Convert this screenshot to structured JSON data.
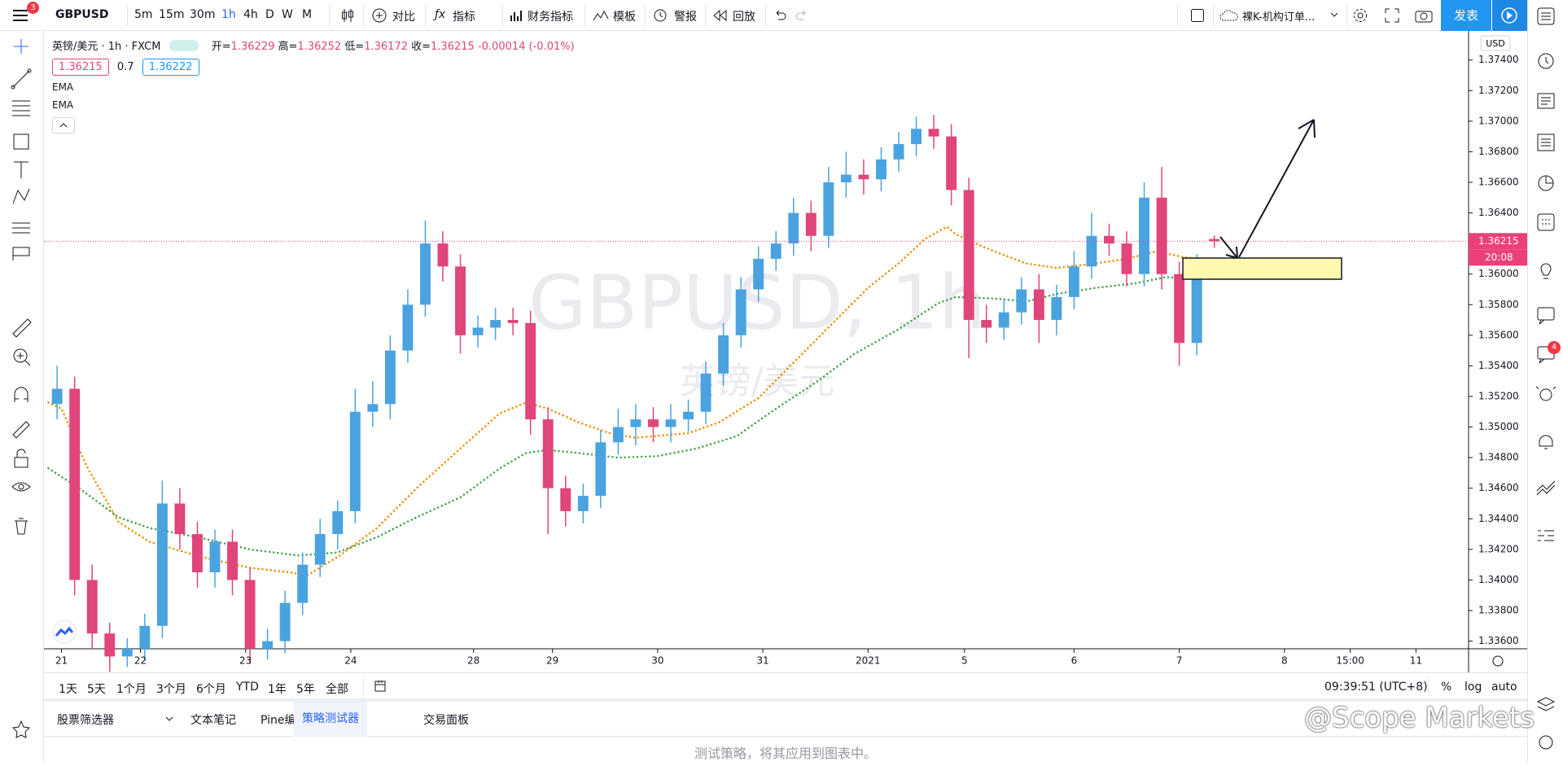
{
  "toolbar": {
    "badge": "3",
    "symbol": "GBPUSD",
    "intervals": [
      "5m",
      "15m",
      "30m",
      "1h",
      "4h",
      "D",
      "W",
      "M"
    ],
    "compare": "对比",
    "indicators": "指标",
    "financials": "财务指标",
    "templates": "模板",
    "alert": "警报",
    "replay": "回放",
    "layout_name": "裸K-机构订单...",
    "publish": "发表"
  },
  "legend": {
    "title": "英镑/美元 · 1h · FXCM",
    "ohlc": [
      {
        "label": "开=",
        "value": "1.36229"
      },
      {
        "label": "高=",
        "value": "1.36252"
      },
      {
        "label": "低=",
        "value": "1.36172"
      },
      {
        "label": "收=",
        "value": "1.36215"
      }
    ],
    "change": "-0.00014 (-0.01%)",
    "bid": "1.36215",
    "spread": "0.7",
    "ask": "1.36222"
  },
  "chart_data": {
    "type": "candlestick",
    "watermark": "GBPUSD, 1h",
    "watermark_sub": "英镑/美元",
    "currency": "USD",
    "price_tag": "1.36215",
    "countdown": "20:08",
    "up_color": "#4aa3df",
    "down_color": "#e0457b",
    "x": [
      3,
      7,
      11,
      15,
      19,
      23,
      27,
      31,
      35,
      39,
      43,
      47,
      51,
      55,
      59,
      63,
      67,
      71,
      75,
      79,
      83,
      87,
      91,
      95,
      99,
      103,
      107,
      111,
      115,
      119,
      123,
      127,
      131,
      135,
      139,
      143,
      147,
      151,
      155,
      159,
      163,
      167,
      171,
      175,
      179,
      183,
      187,
      191,
      195,
      199,
      203,
      207,
      211,
      215,
      219,
      223,
      227,
      231,
      235,
      239,
      243,
      247,
      251,
      255,
      259,
      263,
      267
    ],
    "open": [
      1.3515,
      1.3525,
      1.34,
      1.3365,
      1.335,
      1.3355,
      1.337,
      1.345,
      1.343,
      1.3405,
      1.3425,
      1.34,
      1.3355,
      1.336,
      1.3385,
      1.341,
      1.343,
      1.3445,
      1.351,
      1.3515,
      1.355,
      1.358,
      1.362,
      1.3605,
      1.356,
      1.3565,
      1.357,
      1.3568,
      1.3505,
      1.346,
      1.3445,
      1.3455,
      1.349,
      1.35,
      1.3505,
      1.35,
      1.3505,
      1.351,
      1.3535,
      1.356,
      1.359,
      1.361,
      1.362,
      1.364,
      1.3625,
      1.366,
      1.3665,
      1.3662,
      1.3675,
      1.3685,
      1.3695,
      1.369,
      1.3655,
      1.357,
      1.3565,
      1.3575,
      1.359,
      1.357,
      1.3585,
      1.3605,
      1.3625,
      1.362,
      1.36,
      1.365,
      1.36,
      1.3555,
      1.36229
    ],
    "high": [
      1.354,
      1.3533,
      1.341,
      1.3372,
      1.3362,
      1.3378,
      1.3465,
      1.346,
      1.3438,
      1.3433,
      1.3433,
      1.3408,
      1.3368,
      1.3393,
      1.3418,
      1.344,
      1.3452,
      1.3525,
      1.353,
      1.356,
      1.359,
      1.3635,
      1.3628,
      1.3613,
      1.3573,
      1.3578,
      1.3578,
      1.3576,
      1.3513,
      1.3468,
      1.3463,
      1.3498,
      1.3512,
      1.3515,
      1.3513,
      1.3515,
      1.3518,
      1.3543,
      1.3568,
      1.3598,
      1.3618,
      1.3628,
      1.365,
      1.3648,
      1.367,
      1.368,
      1.3675,
      1.3683,
      1.3693,
      1.3703,
      1.3704,
      1.3698,
      1.3663,
      1.358,
      1.3583,
      1.3598,
      1.36,
      1.3593,
      1.3615,
      1.364,
      1.3633,
      1.3628,
      1.366,
      1.367,
      1.3608,
      1.3613,
      1.36252
    ],
    "low": [
      1.3505,
      1.339,
      1.3355,
      1.334,
      1.3343,
      1.3347,
      1.3362,
      1.342,
      1.3395,
      1.3395,
      1.339,
      1.3345,
      1.3348,
      1.3352,
      1.3377,
      1.3402,
      1.342,
      1.3437,
      1.35,
      1.3505,
      1.3542,
      1.3572,
      1.3595,
      1.3548,
      1.3552,
      1.3557,
      1.356,
      1.3495,
      1.343,
      1.3435,
      1.3437,
      1.3447,
      1.3482,
      1.3488,
      1.349,
      1.349,
      1.3497,
      1.3502,
      1.3527,
      1.3552,
      1.3582,
      1.3602,
      1.3612,
      1.3615,
      1.3617,
      1.365,
      1.3652,
      1.3654,
      1.3667,
      1.3677,
      1.3682,
      1.3645,
      1.3545,
      1.3555,
      1.3557,
      1.3567,
      1.3555,
      1.356,
      1.3577,
      1.3597,
      1.3612,
      1.3592,
      1.3592,
      1.359,
      1.354,
      1.3547,
      1.36172
    ],
    "close": [
      1.3525,
      1.34,
      1.3365,
      1.335,
      1.3355,
      1.337,
      1.345,
      1.343,
      1.3405,
      1.3425,
      1.34,
      1.3355,
      1.336,
      1.3385,
      1.341,
      1.343,
      1.3445,
      1.351,
      1.3515,
      1.355,
      1.358,
      1.362,
      1.3605,
      1.356,
      1.3565,
      1.357,
      1.3568,
      1.3505,
      1.346,
      1.3445,
      1.3455,
      1.349,
      1.35,
      1.3505,
      1.35,
      1.3505,
      1.351,
      1.3535,
      1.356,
      1.359,
      1.361,
      1.362,
      1.364,
      1.3625,
      1.366,
      1.3665,
      1.3662,
      1.3675,
      1.3685,
      1.3695,
      1.369,
      1.3655,
      1.357,
      1.3565,
      1.3575,
      1.359,
      1.357,
      1.3585,
      1.3605,
      1.3625,
      1.362,
      1.36,
      1.365,
      1.36,
      1.3555,
      1.3605,
      1.36215
    ],
    "series": [
      {
        "name": "EMA",
        "color": "#f08c00",
        "x": [
          1,
          4,
          10,
          17,
          24,
          36,
          47,
          56,
          60,
          67,
          76,
          85,
          95,
          104,
          110,
          115,
          122,
          129,
          135,
          147,
          154,
          163,
          172,
          181,
          188,
          195,
          201,
          206,
          208,
          215,
          224,
          231,
          240,
          247,
          254,
          260,
          268
        ],
        "values": [
          1.3516,
          1.3512,
          1.3473,
          1.3438,
          1.3425,
          1.3415,
          1.3408,
          1.3405,
          1.3403,
          1.3415,
          1.3434,
          1.346,
          1.3486,
          1.3509,
          1.3516,
          1.3512,
          1.3503,
          1.3496,
          1.3493,
          1.3496,
          1.3503,
          1.3519,
          1.3545,
          1.3571,
          1.3591,
          1.3607,
          1.3623,
          1.3631,
          1.3626,
          1.3617,
          1.3607,
          1.3604,
          1.3607,
          1.361,
          1.3615,
          1.3611,
          1.3609
        ]
      },
      {
        "name": "EMA",
        "color": "#43a047",
        "x": [
          1,
          8,
          17,
          24,
          35,
          47,
          58,
          67,
          76,
          85,
          95,
          104,
          110,
          115,
          122,
          131,
          140,
          149,
          158,
          167,
          176,
          185,
          195,
          204,
          208,
          217,
          224,
          231,
          240,
          249,
          256,
          268
        ],
        "values": [
          1.3473,
          1.346,
          1.3441,
          1.3434,
          1.3428,
          1.342,
          1.3416,
          1.3418,
          1.3428,
          1.3441,
          1.3454,
          1.3473,
          1.3483,
          1.3485,
          1.3483,
          1.348,
          1.3481,
          1.3486,
          1.3494,
          1.3512,
          1.3529,
          1.3548,
          1.3564,
          1.3581,
          1.3585,
          1.3584,
          1.3582,
          1.3587,
          1.3591,
          1.3594,
          1.3598,
          1.3597
        ]
      }
    ],
    "xlim": [
      0,
      325
    ],
    "ylim": [
      1.3355,
      1.3759
    ],
    "xticks": [
      {
        "value": 4,
        "label": "21"
      },
      {
        "value": 22,
        "label": "22"
      },
      {
        "value": 46,
        "label": "23"
      },
      {
        "value": 70,
        "label": "24"
      },
      {
        "value": 98,
        "label": "28"
      },
      {
        "value": 116,
        "label": "29"
      },
      {
        "value": 140,
        "label": "30"
      },
      {
        "value": 164,
        "label": "31"
      },
      {
        "value": 188,
        "label": "2021"
      },
      {
        "value": 210,
        "label": "5"
      },
      {
        "value": 235,
        "label": "6"
      },
      {
        "value": 259,
        "label": "7"
      },
      {
        "value": 283,
        "label": "8"
      },
      {
        "value": 298,
        "label": "15:00"
      },
      {
        "value": 313,
        "label": "11"
      }
    ],
    "yticks": [
      {
        "value": 1.336,
        "label": "1.33600"
      },
      {
        "value": 1.338,
        "label": "1.33800"
      },
      {
        "value": 1.34,
        "label": "1.34000"
      },
      {
        "value": 1.342,
        "label": "1.34200"
      },
      {
        "value": 1.344,
        "label": "1.34400"
      },
      {
        "value": 1.346,
        "label": "1.34600"
      },
      {
        "value": 1.348,
        "label": "1.34800"
      },
      {
        "value": 1.35,
        "label": "1.35000"
      },
      {
        "value": 1.352,
        "label": "1.35200"
      },
      {
        "value": 1.354,
        "label": "1.35400"
      },
      {
        "value": 1.356,
        "label": "1.35600"
      },
      {
        "value": 1.358,
        "label": "1.35800"
      },
      {
        "value": 1.36,
        "label": "1.36000"
      },
      {
        "value": 1.362,
        "label": "1.36200"
      },
      {
        "value": 1.364,
        "label": "1.36400"
      },
      {
        "value": 1.366,
        "label": "1.36600"
      },
      {
        "value": 1.368,
        "label": "1.36800"
      },
      {
        "value": 1.37,
        "label": "1.37000"
      },
      {
        "value": 1.372,
        "label": "1.37200"
      },
      {
        "value": 1.374,
        "label": "1.37400"
      }
    ]
  },
  "range_bar": {
    "ranges": [
      "1天",
      "5天",
      "1个月",
      "3个月",
      "6个月",
      "YTD",
      "1年",
      "5年",
      "全部"
    ],
    "clock": "09:39:51 (UTC+8)",
    "options": [
      "%",
      "log",
      "auto"
    ]
  },
  "bottom_tabs": {
    "tabs": [
      "股票筛选器",
      "文本笔记",
      "Pine编辑器",
      "策略测试器",
      "交易面板"
    ],
    "panel_message": "测试策略，将其应用到图表中。"
  },
  "sidebar_badge": "4",
  "credit": "@Scope Markets"
}
